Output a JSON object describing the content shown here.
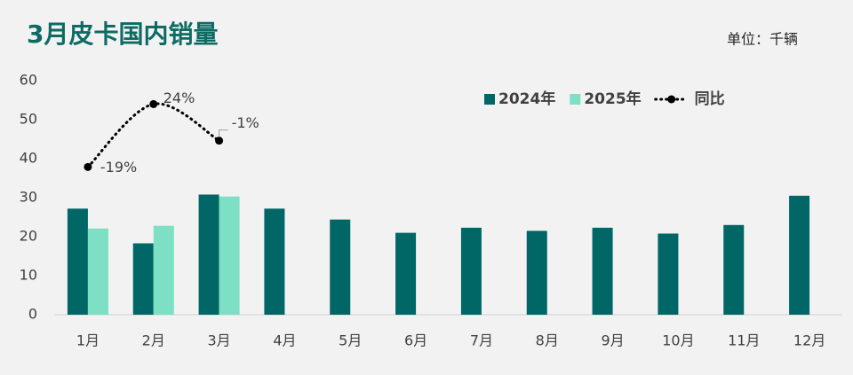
{
  "chart_data": {
    "type": "bar",
    "title": "3月皮卡国内销量",
    "subtitle": "单位：千辆",
    "categories": [
      "1月",
      "2月",
      "3月",
      "4月",
      "5月",
      "6月",
      "7月",
      "8月",
      "9月",
      "10月",
      "11月",
      "12月"
    ],
    "series": [
      {
        "name": "2024年",
        "color": "#006766",
        "values": [
          27.2,
          18.3,
          30.8,
          27.2,
          24.4,
          21.0,
          22.3,
          21.5,
          22.3,
          20.8,
          23.0,
          30.5
        ]
      },
      {
        "name": "2025年",
        "color": "#7ddfc3",
        "values": [
          22.1,
          22.8,
          30.3,
          null,
          null,
          null,
          null,
          null,
          null,
          null,
          null,
          null
        ]
      },
      {
        "name": "同比",
        "color": "#000000",
        "type": "line",
        "axis": "y2",
        "values": [
          -19,
          24,
          -1,
          null,
          null,
          null,
          null,
          null,
          null,
          null,
          null,
          null
        ],
        "value_labels": [
          "-19%",
          "24%",
          "-1%",
          null,
          null,
          null,
          null,
          null,
          null,
          null,
          null,
          null
        ]
      }
    ],
    "ylim": [
      0,
      60
    ],
    "yticks": [
      0,
      10,
      20,
      30,
      40,
      50,
      60
    ],
    "y2lim": [
      -120,
      40
    ],
    "grid": false,
    "legend": "top-right"
  }
}
